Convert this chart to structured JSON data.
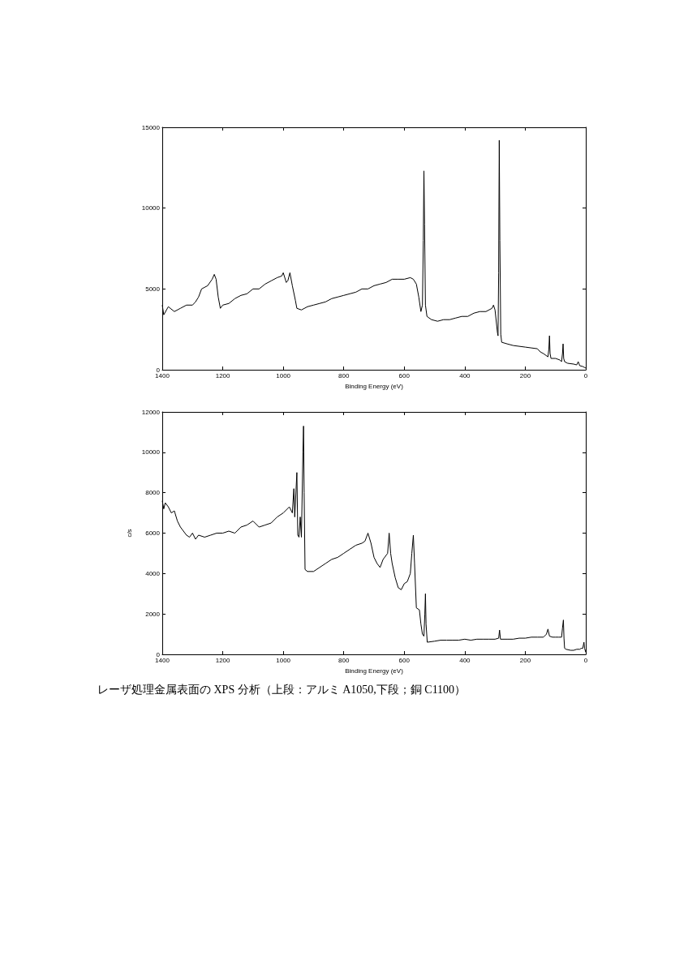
{
  "chart_data": [
    {
      "type": "line",
      "xlabel": "Binding Energy (eV)",
      "xlim": [
        1400,
        0
      ],
      "xticks": [
        1400,
        1200,
        1000,
        800,
        600,
        400,
        200,
        0
      ],
      "ylim": [
        0,
        15000
      ],
      "yticks": [
        0,
        5000,
        10000,
        15000
      ],
      "grid": false,
      "marker": "none",
      "line_style": "solid",
      "series": [
        {
          "color": "#000000",
          "x": [
            1400,
            1395,
            1380,
            1360,
            1340,
            1320,
            1300,
            1290,
            1280,
            1270,
            1250,
            1235,
            1228,
            1222,
            1215,
            1208,
            1200,
            1180,
            1160,
            1140,
            1120,
            1100,
            1080,
            1060,
            1040,
            1020,
            1005,
            1000,
            990,
            985,
            978,
            970,
            960,
            955,
            940,
            920,
            900,
            880,
            860,
            840,
            820,
            800,
            780,
            760,
            740,
            720,
            700,
            680,
            660,
            640,
            620,
            600,
            580,
            570,
            560,
            552,
            545,
            540,
            537,
            535,
            533,
            530,
            525,
            510,
            490,
            470,
            450,
            430,
            410,
            390,
            370,
            350,
            330,
            310,
            305,
            300,
            292,
            290,
            288,
            286,
            284,
            281,
            278,
            260,
            240,
            220,
            200,
            180,
            160,
            150,
            140,
            125,
            122,
            120,
            118,
            115,
            100,
            85,
            80,
            77,
            75,
            73,
            70,
            60,
            40,
            30,
            25,
            20,
            10,
            5,
            0
          ],
          "values": [
            4000,
            3400,
            3900,
            3600,
            3800,
            4000,
            4000,
            4200,
            4500,
            5000,
            5200,
            5600,
            5900,
            5600,
            4500,
            3800,
            4000,
            4100,
            4400,
            4600,
            4700,
            5000,
            5000,
            5300,
            5500,
            5700,
            5800,
            6000,
            5400,
            5500,
            6000,
            5200,
            4300,
            3800,
            3700,
            3900,
            4000,
            4100,
            4200,
            4400,
            4500,
            4600,
            4700,
            4800,
            5000,
            5000,
            5200,
            5300,
            5400,
            5600,
            5600,
            5600,
            5700,
            5600,
            5300,
            4500,
            3600,
            4000,
            8000,
            12300,
            9000,
            4000,
            3300,
            3100,
            3000,
            3100,
            3100,
            3200,
            3300,
            3300,
            3500,
            3600,
            3600,
            3800,
            4000,
            3700,
            2300,
            2100,
            6000,
            14200,
            8000,
            2200,
            1700,
            1600,
            1500,
            1450,
            1400,
            1350,
            1300,
            1100,
            1000,
            800,
            1300,
            2100,
            1000,
            700,
            700,
            600,
            500,
            1000,
            1600,
            700,
            500,
            400,
            350,
            300,
            500,
            250,
            200,
            150,
            100
          ]
        }
      ]
    },
    {
      "type": "line",
      "xlabel": "Binding Energy (eV)",
      "ylabel": "c/s",
      "xlim": [
        1400,
        0
      ],
      "xticks": [
        1400,
        1200,
        1000,
        800,
        600,
        400,
        200,
        0
      ],
      "ylim": [
        0,
        12000
      ],
      "yticks": [
        0,
        2000,
        4000,
        6000,
        8000,
        10000,
        12000
      ],
      "grid": false,
      "marker": "none",
      "line_style": "solid",
      "annotations": [
        "レーザ処理金属表面の XPS 分析（上段：アルミ A1050,下段；銅 C1100）"
      ],
      "series": [
        {
          "color": "#000000",
          "x": [
            1400,
            1395,
            1390,
            1380,
            1370,
            1360,
            1350,
            1340,
            1330,
            1320,
            1310,
            1300,
            1290,
            1280,
            1260,
            1240,
            1220,
            1200,
            1180,
            1160,
            1140,
            1120,
            1100,
            1080,
            1060,
            1040,
            1020,
            1000,
            980,
            970,
            965,
            962,
            955,
            952,
            948,
            944,
            940,
            935,
            933,
            931,
            928,
            920,
            900,
            880,
            860,
            840,
            820,
            800,
            780,
            760,
            740,
            730,
            720,
            710,
            700,
            690,
            680,
            670,
            660,
            655,
            650,
            645,
            640,
            630,
            620,
            610,
            600,
            590,
            580,
            575,
            570,
            566,
            560,
            550,
            545,
            540,
            535,
            532,
            530,
            528,
            524,
            500,
            480,
            460,
            440,
            420,
            400,
            380,
            360,
            340,
            320,
            300,
            288,
            285,
            282,
            260,
            240,
            220,
            200,
            180,
            160,
            140,
            130,
            125,
            120,
            110,
            100,
            90,
            80,
            77,
            74,
            72,
            70,
            65,
            50,
            40,
            30,
            20,
            15,
            10,
            6,
            4,
            0
          ],
          "values": [
            7600,
            7200,
            7500,
            7300,
            7000,
            7100,
            6600,
            6300,
            6100,
            5900,
            5800,
            6000,
            5700,
            5900,
            5800,
            5900,
            6000,
            6000,
            6100,
            6000,
            6300,
            6400,
            6600,
            6300,
            6400,
            6500,
            6800,
            7000,
            7300,
            7000,
            8200,
            6800,
            9000,
            5900,
            5800,
            6800,
            5800,
            10000,
            11300,
            8000,
            4200,
            4100,
            4100,
            4300,
            4500,
            4700,
            4800,
            5000,
            5200,
            5400,
            5500,
            5600,
            6000,
            5500,
            4800,
            4500,
            4300,
            4700,
            4900,
            5000,
            6000,
            5000,
            4500,
            3800,
            3300,
            3200,
            3500,
            3600,
            4000,
            5000,
            5900,
            4500,
            2300,
            2200,
            1500,
            1000,
            900,
            2000,
            3000,
            1500,
            600,
            650,
            700,
            700,
            700,
            700,
            750,
            700,
            750,
            750,
            750,
            750,
            800,
            1200,
            750,
            750,
            750,
            800,
            800,
            850,
            850,
            850,
            1000,
            1250,
            900,
            850,
            850,
            850,
            850,
            1300,
            1700,
            800,
            300,
            250,
            200,
            200,
            250,
            250,
            300,
            300,
            600,
            300,
            100
          ]
        }
      ]
    }
  ]
}
